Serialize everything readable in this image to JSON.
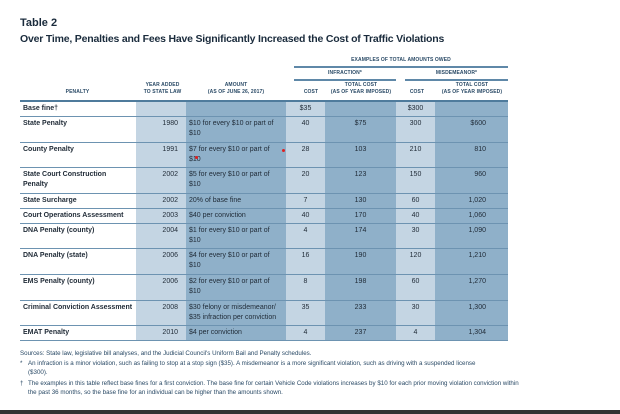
{
  "table_label": "Table 2",
  "title": "Over Time, Penalties and Fees Have Significantly Increased the Cost of Traffic Violations",
  "headers": {
    "group": "EXAMPLES OF TOTAL AMOUNTS OWED",
    "infraction": "INFRACTION*",
    "misdemeanor": "MISDEMEANOR*",
    "penalty": "PENALTY",
    "year_1": "YEAR ADDED",
    "year_2": "TO STATE LAW",
    "amount_1": "AMOUNT",
    "amount_2": "(AS OF JUNE 26, 2017)",
    "cost": "COST",
    "total_1": "TOTAL COST",
    "total_2": "(AS OF YEAR IMPOSED)"
  },
  "rows": [
    {
      "penalty": "Base fine†",
      "year": "",
      "amount": "",
      "inf_cost": "$35",
      "inf_total": "",
      "mis_cost": "$300",
      "mis_total": ""
    },
    {
      "penalty": "State Penalty",
      "year": "1980",
      "amount": "$10 for every $10 or part of $10",
      "inf_cost": "40",
      "inf_total": "$75",
      "mis_cost": "300",
      "mis_total": "$600"
    },
    {
      "penalty": "County Penalty",
      "year": "1991",
      "amount": "$7 for every $10 or part of $10",
      "inf_cost": "28",
      "inf_total": "103",
      "mis_cost": "210",
      "mis_total": "810"
    },
    {
      "penalty": "State Court Construction Penalty",
      "year": "2002",
      "amount": "$5 for every $10 or part of $10",
      "inf_cost": "20",
      "inf_total": "123",
      "mis_cost": "150",
      "mis_total": "960"
    },
    {
      "penalty": "State Surcharge",
      "year": "2002",
      "amount": "20% of base fine",
      "inf_cost": "7",
      "inf_total": "130",
      "mis_cost": "60",
      "mis_total": "1,020"
    },
    {
      "penalty": "Court Operations Assessment",
      "year": "2003",
      "amount": "$40 per conviction",
      "inf_cost": "40",
      "inf_total": "170",
      "mis_cost": "40",
      "mis_total": "1,060"
    },
    {
      "penalty": "DNA Penalty (county)",
      "year": "2004",
      "amount": "$1 for every $10 or part of $10",
      "inf_cost": "4",
      "inf_total": "174",
      "mis_cost": "30",
      "mis_total": "1,090"
    },
    {
      "penalty": "DNA Penalty (state)",
      "year": "2006",
      "amount": "$4 for every $10 or part of $10",
      "inf_cost": "16",
      "inf_total": "190",
      "mis_cost": "120",
      "mis_total": "1,210"
    },
    {
      "penalty": "EMS Penalty (county)",
      "year": "2006",
      "amount": "$2 for every $10 or part of $10",
      "inf_cost": "8",
      "inf_total": "198",
      "mis_cost": "60",
      "mis_total": "1,270"
    },
    {
      "penalty": "Criminal Conviction Assessment",
      "year": "2008",
      "amount": "$30 felony or misdemeanor/ $35 infraction per conviction",
      "inf_cost": "35",
      "inf_total": "233",
      "mis_cost": "30",
      "mis_total": "1,300"
    },
    {
      "penalty": "EMAT Penalty",
      "year": "2010",
      "amount": "$4 per conviction",
      "inf_cost": "4",
      "inf_total": "237",
      "mis_cost": "4",
      "mis_total": "1,304"
    }
  ],
  "footnotes": {
    "sources": "Sources:  State law, legislative bill analyses, and the Judicial Council's Uniform Bail and Penalty schedules.",
    "star_mark": "*",
    "star_text": "An infraction is a minor violation, such as failing to stop at a stop sign ($35). A misdemeanor is a more significant violation, such as driving with a suspended license ($300).",
    "dagger_mark": "†",
    "dagger_text": "The examples in this table reflect base fines for a first conviction. The base fine for certain Vehicle Code violations increases by $10 for each prior moving violation conviction within the past 36 months, so the base fine for an individual can be higher than the amounts shown."
  },
  "colors": {
    "light_col": "#c4d5e3",
    "dark_col": "#8fb0c9",
    "rule": "#5f88a8",
    "title": "#1a2b3c"
  }
}
